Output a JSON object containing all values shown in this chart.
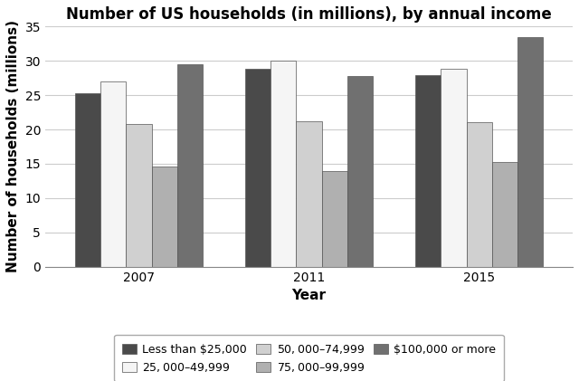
{
  "title": "Number of US households (in millions), by annual income",
  "xlabel": "Year",
  "ylabel": "Number of households (millions)",
  "years": [
    "2007",
    "2011",
    "2015"
  ],
  "categories": [
    "Less than $25,000",
    "$25,000–$49,999",
    "$50,000–$74,999",
    "$75,000–$99,999",
    "$100,000 or more"
  ],
  "values": {
    "Less than $25,000": [
      25.3,
      28.9,
      27.9
    ],
    "$25,000–$49,999": [
      27.0,
      30.0,
      28.8
    ],
    "$50,000–$74,999": [
      20.8,
      21.2,
      21.0
    ],
    "$75,000–$99,999": [
      14.6,
      14.0,
      15.2
    ],
    "$100,000 or more": [
      29.5,
      27.8,
      33.4
    ]
  },
  "colors": [
    "#4a4a4a",
    "#f5f5f5",
    "#d0d0d0",
    "#b0b0b0",
    "#707070"
  ],
  "bar_edge_color": "#555555",
  "ylim": [
    0,
    35
  ],
  "yticks": [
    0,
    5,
    10,
    15,
    20,
    25,
    30,
    35
  ],
  "grid_color": "#cccccc",
  "background_color": "#ffffff",
  "title_fontsize": 12,
  "axis_label_fontsize": 11,
  "tick_fontsize": 10,
  "legend_fontsize": 9,
  "group_width": 0.75
}
